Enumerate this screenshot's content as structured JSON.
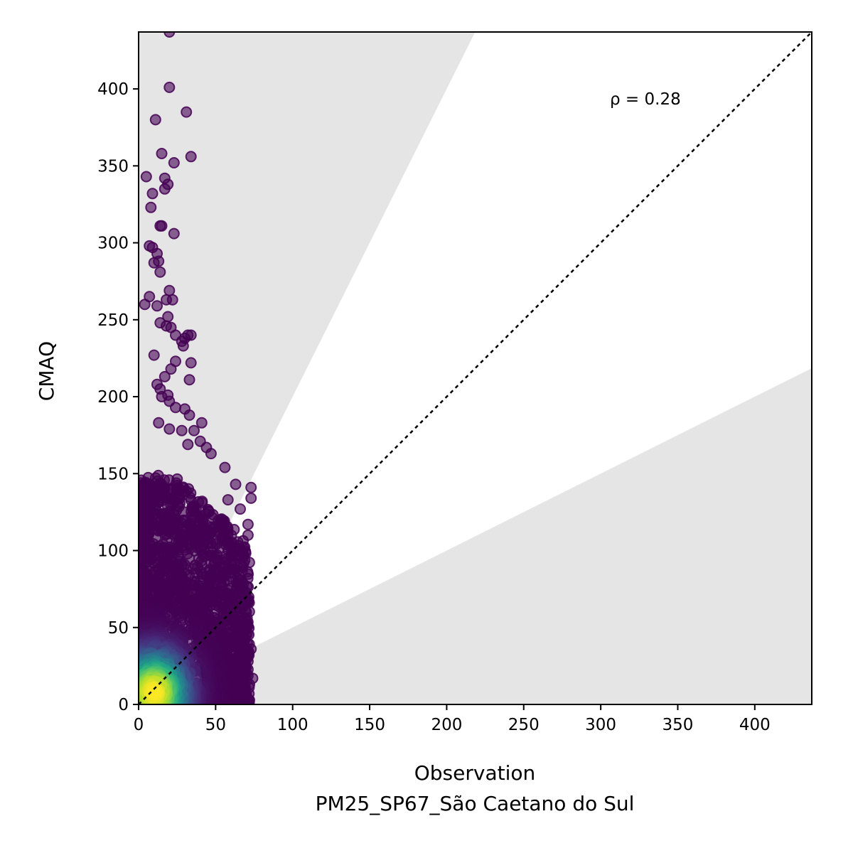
{
  "chart_data": {
    "type": "scatter",
    "title": "",
    "xlabel": "Observation",
    "xlabel_sub": "PM25_SP67_São Caetano do Sul",
    "ylabel": "CMAQ",
    "xlim": [
      0,
      437
    ],
    "ylim": [
      0,
      437
    ],
    "xticks": [
      0,
      50,
      100,
      150,
      200,
      250,
      300,
      350,
      400
    ],
    "yticks": [
      0,
      50,
      100,
      150,
      200,
      250,
      300,
      350,
      400
    ],
    "annotation": "ρ = 0.28",
    "reference_line": "1:1",
    "shaded_bands": "outside factor-of-2 (y > 2x and y < 0.5x)",
    "grid": false,
    "colormap": "viridis (point density)",
    "colors": {
      "band": "#e5e5e5",
      "point_low_density": "#440154",
      "point_high_density": "#fde725"
    },
    "outlier_points": [
      [
        20,
        437
      ],
      [
        20,
        401
      ],
      [
        31,
        385
      ],
      [
        11,
        380
      ],
      [
        15,
        358
      ],
      [
        34,
        356
      ],
      [
        5,
        343
      ],
      [
        17,
        342
      ],
      [
        19,
        338
      ],
      [
        17,
        335
      ],
      [
        23,
        352
      ],
      [
        9,
        332
      ],
      [
        8,
        323
      ],
      [
        14,
        311
      ],
      [
        15,
        311
      ],
      [
        23,
        306
      ],
      [
        7,
        298
      ],
      [
        9,
        297
      ],
      [
        12,
        293
      ],
      [
        13,
        288
      ],
      [
        10,
        287
      ],
      [
        14,
        281
      ],
      [
        20,
        269
      ],
      [
        7,
        265
      ],
      [
        22,
        263
      ],
      [
        4,
        260
      ],
      [
        12,
        259
      ],
      [
        18,
        263
      ],
      [
        19,
        252
      ],
      [
        14,
        248
      ],
      [
        18,
        246
      ],
      [
        21,
        245
      ],
      [
        24,
        240
      ],
      [
        30,
        238
      ],
      [
        32,
        240
      ],
      [
        34,
        240
      ],
      [
        28,
        236
      ],
      [
        29,
        233
      ],
      [
        10,
        227
      ],
      [
        34,
        222
      ],
      [
        24,
        223
      ],
      [
        21,
        218
      ],
      [
        33,
        211
      ],
      [
        17,
        213
      ],
      [
        12,
        208
      ],
      [
        14,
        205
      ],
      [
        15,
        200
      ],
      [
        19,
        201
      ],
      [
        20,
        197
      ],
      [
        24,
        193
      ],
      [
        30,
        192
      ],
      [
        33,
        188
      ],
      [
        41,
        183
      ],
      [
        13,
        183
      ],
      [
        20,
        179
      ],
      [
        28,
        178
      ],
      [
        36,
        178
      ],
      [
        40,
        171
      ],
      [
        32,
        169
      ],
      [
        47,
        163
      ],
      [
        44,
        167
      ],
      [
        56,
        154
      ],
      [
        63,
        143
      ],
      [
        73,
        141
      ],
      [
        73,
        134
      ],
      [
        58,
        133
      ],
      [
        66,
        127
      ],
      [
        71,
        117
      ],
      [
        71,
        110
      ],
      [
        65,
        78
      ],
      [
        70,
        67
      ],
      [
        71,
        51
      ],
      [
        73,
        36
      ],
      [
        71,
        28
      ],
      [
        74,
        17
      ],
      [
        72,
        13
      ],
      [
        68,
        24
      ],
      [
        66,
        48
      ]
    ],
    "dense_cluster": {
      "x_range": [
        0,
        72
      ],
      "y_range": [
        0,
        150
      ],
      "peak": [
        10,
        8
      ]
    }
  }
}
